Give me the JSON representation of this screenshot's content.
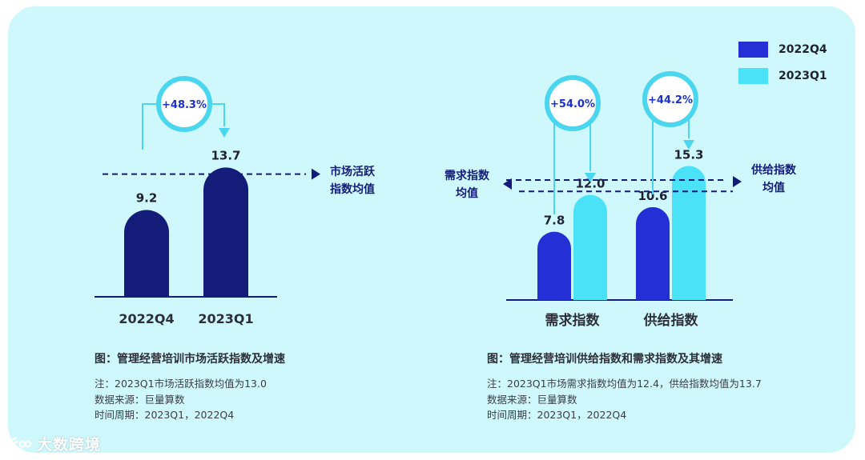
{
  "colors": {
    "card_bg": "#cff8fc",
    "dark_navy": "#141c7a",
    "blue_2022Q4": "#2430d6",
    "cyan_2023Q1": "#4ae2f6",
    "ring": "#4ad6ef",
    "text_dark": "#1e2233"
  },
  "legend": {
    "items": [
      {
        "label": "2022Q4",
        "color": "#2430d6"
      },
      {
        "label": "2023Q1",
        "color": "#4ae2f6"
      }
    ]
  },
  "left": {
    "title": "图：管理经营培训市场活跃指数及增速",
    "notes": [
      "注：2023Q1市场活跃指数均值为13.0",
      "数据来源：巨量算数",
      "时间周期：2023Q1，2022Q4"
    ],
    "growth_label": "+48.3%",
    "avg_label_line1": "市场活跃",
    "avg_label_line2": "指数均值"
  },
  "right": {
    "title": "图：管理经营培训供给指数和需求指数及其增速",
    "notes": [
      "注：2023Q1市场需求指数均值为12.4，供给指数均值为13.7",
      "数据来源：巨量算数",
      "时间周期：2023Q1，2022Q4"
    ],
    "growth_labels": [
      "+54.0%",
      "+44.2%"
    ],
    "demand_avg_line1": "需求指数",
    "demand_avg_line2": "均值",
    "supply_avg_line1": "供给指数",
    "supply_avg_line2": "均值"
  },
  "chart_data": [
    {
      "type": "bar",
      "categories": [
        "2022Q4",
        "2023Q1"
      ],
      "values": [
        9.2,
        13.7
      ],
      "value_labels": [
        "9.2",
        "13.7"
      ],
      "reference_line": {
        "value": 13.0
      },
      "growth": "+48.3%"
    },
    {
      "type": "bar",
      "categories": [
        "需求指数",
        "供给指数"
      ],
      "series": [
        {
          "name": "2022Q4",
          "values": [
            7.8,
            10.6
          ],
          "labels": [
            "7.8",
            "10.6"
          ]
        },
        {
          "name": "2023Q1",
          "values": [
            12.0,
            15.3
          ],
          "labels": [
            "12.0",
            "15.3"
          ]
        }
      ],
      "reference_lines": [
        {
          "value": 12.4
        },
        {
          "value": 13.7
        }
      ],
      "growth": [
        "+54.0%",
        "+44.2%"
      ]
    }
  ],
  "watermark": "大数跨境"
}
